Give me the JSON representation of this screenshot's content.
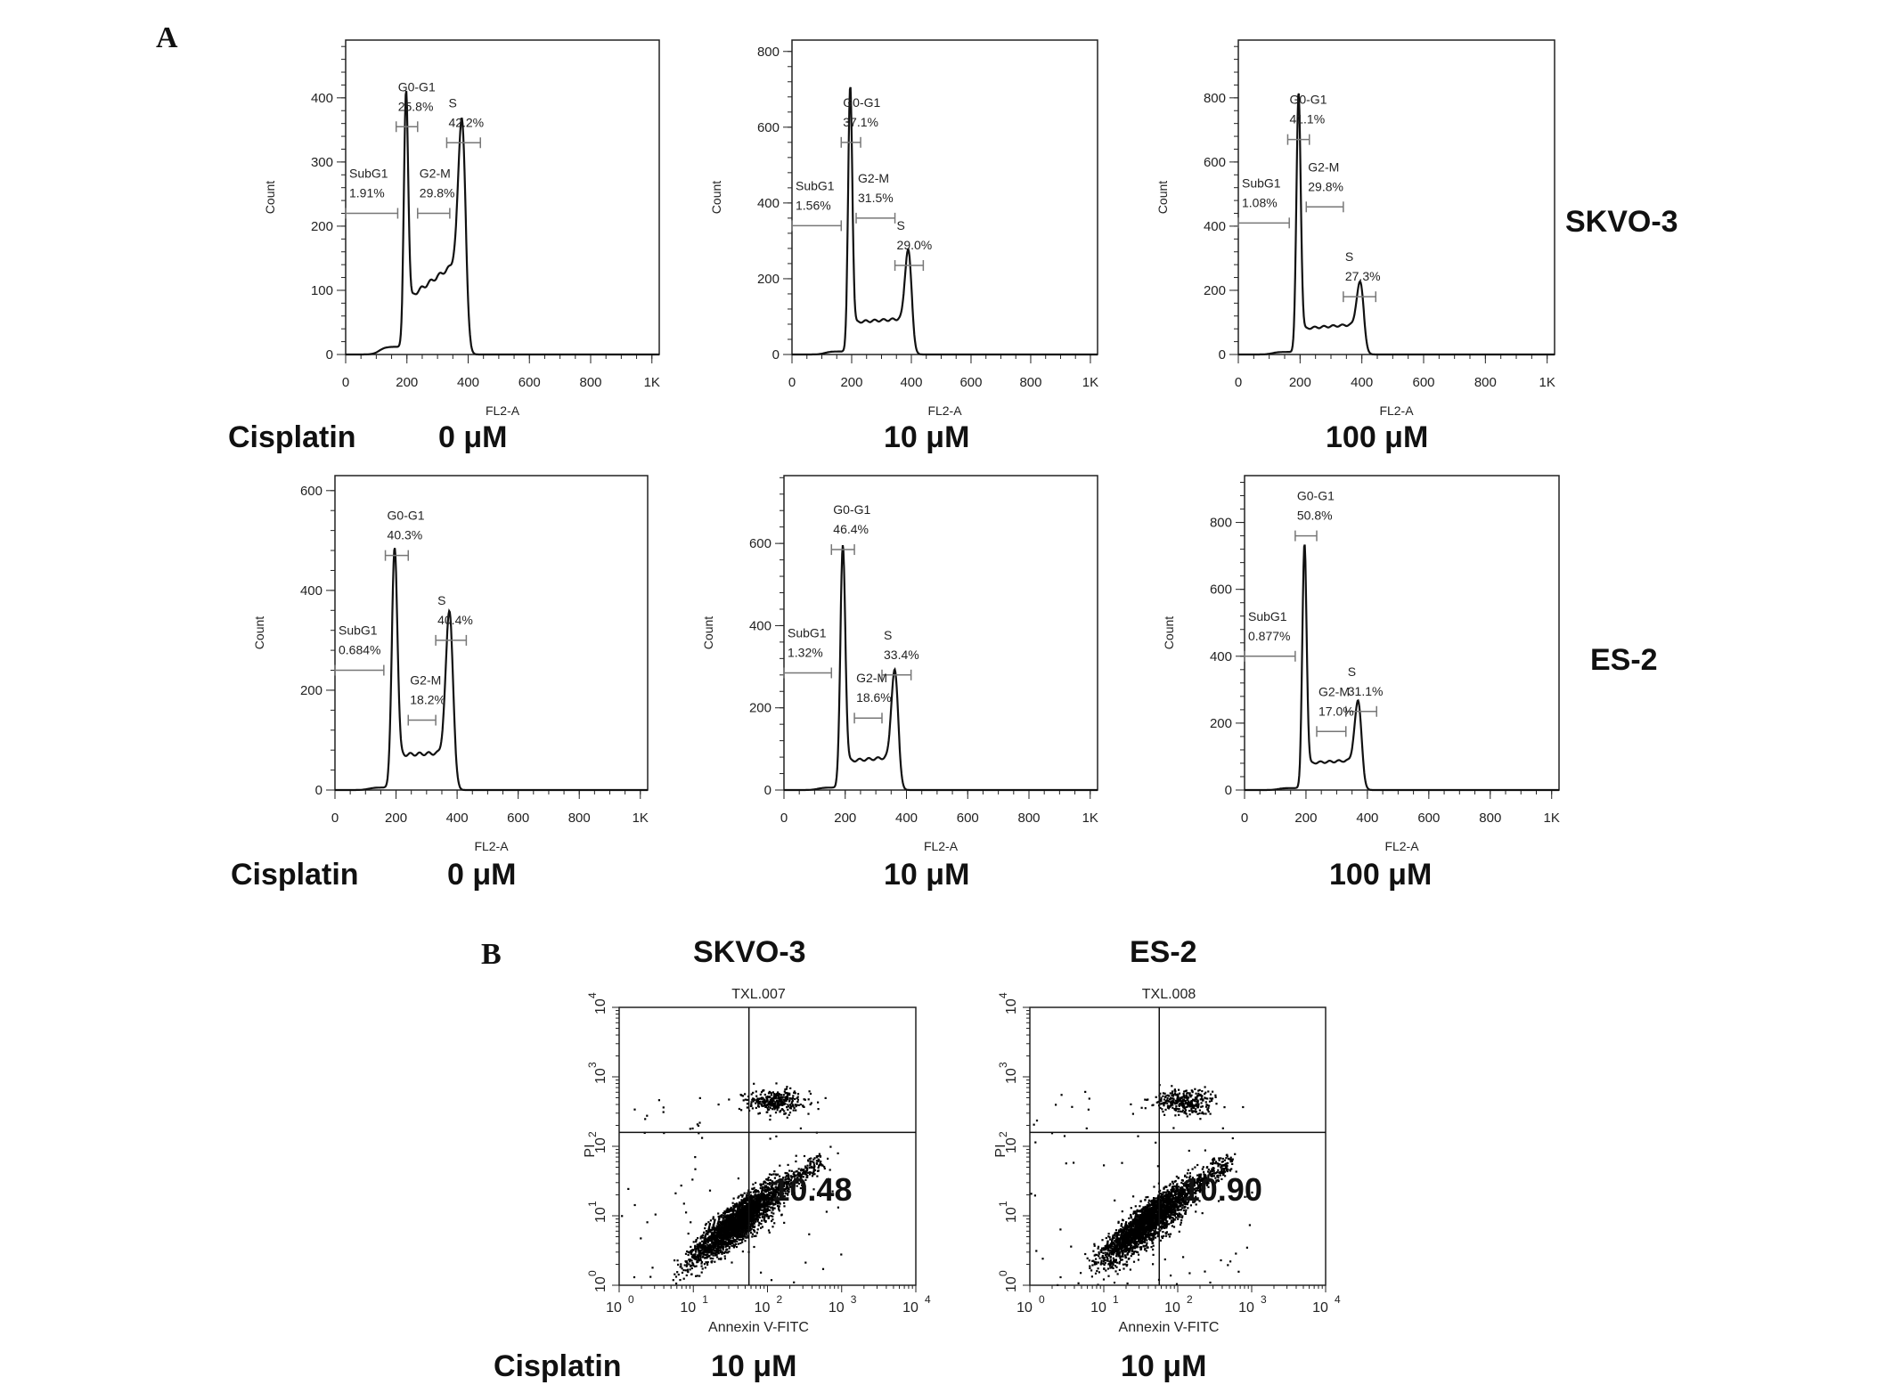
{
  "panel_letters": {
    "a": "A",
    "b": "B"
  },
  "row_labels": {
    "row1": "SKVO-3",
    "row2": "ES-2"
  },
  "dose_labels": {
    "drug": "Cisplatin",
    "d0": "0 μM",
    "d10": "10 μM",
    "d100": "100 μM"
  },
  "b_titles": {
    "left": "SKVO-3",
    "right": "ES-2"
  },
  "b_labels": {
    "drug": "Cisplatin",
    "left_dose": "10 μM",
    "right_dose": "10 μM"
  },
  "chart_data": [
    {
      "type": "line",
      "cell_line": "SKVO-3",
      "dose": "0 μM",
      "xlabel": "FL2-A",
      "ylabel": "Count",
      "xlim": [
        0,
        1024
      ],
      "ylim": [
        0,
        490
      ],
      "xticks": [
        "0",
        "200",
        "400",
        "600",
        "800",
        "1K"
      ],
      "yticks": [
        0,
        100,
        200,
        300,
        400
      ],
      "model": {
        "g1": {
          "mu": 197,
          "h": 390,
          "sd": 7
        },
        "g2": {
          "mu": 380,
          "h": 230,
          "sd": 12
        },
        "s": [
          85,
          150
        ],
        "sub": 12
      },
      "gates": [
        {
          "name": "SubG1",
          "pct": "1.91%",
          "range": [
            0,
            170
          ],
          "y": 220
        },
        {
          "name": "G0-G1",
          "pct": "25.8%",
          "range": [
            165,
            235
          ],
          "y": 355
        },
        {
          "name": "G2-M",
          "pct": "29.8%",
          "range": [
            235,
            340
          ],
          "y": 220
        },
        {
          "name": "S",
          "pct": "42.2%",
          "range": [
            330,
            440
          ],
          "y": 330
        }
      ]
    },
    {
      "type": "line",
      "cell_line": "SKVO-3",
      "dose": "10 μM",
      "xlabel": "FL2-A",
      "ylabel": "Count",
      "xlim": [
        0,
        1024
      ],
      "ylim": [
        0,
        830
      ],
      "xticks": [
        "0",
        "200",
        "400",
        "600",
        "800",
        "1K"
      ],
      "yticks": [
        0,
        200,
        400,
        600,
        800
      ],
      "model": {
        "g1": {
          "mu": 195,
          "h": 690,
          "sd": 7
        },
        "g2": {
          "mu": 390,
          "h": 190,
          "sd": 11
        },
        "s": [
          85,
          95
        ],
        "sub": 8
      },
      "gates": [
        {
          "name": "SubG1",
          "pct": "1.56%",
          "range": [
            0,
            165
          ],
          "y": 340
        },
        {
          "name": "G0-G1",
          "pct": "37.1%",
          "range": [
            165,
            230
          ],
          "y": 560
        },
        {
          "name": "G2-M",
          "pct": "31.5%",
          "range": [
            215,
            345
          ],
          "y": 360
        },
        {
          "name": "S",
          "pct": "29.0%",
          "range": [
            345,
            440
          ],
          "y": 235
        }
      ]
    },
    {
      "type": "line",
      "cell_line": "SKVO-3",
      "dose": "100 μM",
      "xlabel": "FL2-A",
      "ylabel": "Count",
      "xlim": [
        0,
        1024
      ],
      "ylim": [
        0,
        980
      ],
      "xticks": [
        "0",
        "200",
        "400",
        "600",
        "800",
        "1K"
      ],
      "yticks": [
        0,
        200,
        400,
        600,
        800
      ],
      "model": {
        "g1": {
          "mu": 195,
          "h": 800,
          "sd": 7
        },
        "g2": {
          "mu": 395,
          "h": 140,
          "sd": 11
        },
        "s": [
          80,
          95
        ],
        "sub": 8
      },
      "gates": [
        {
          "name": "SubG1",
          "pct": "1.08%",
          "range": [
            0,
            165
          ],
          "y": 410
        },
        {
          "name": "G0-G1",
          "pct": "41.1%",
          "range": [
            160,
            230
          ],
          "y": 670
        },
        {
          "name": "G2-M",
          "pct": "29.8%",
          "range": [
            220,
            340
          ],
          "y": 460
        },
        {
          "name": "S",
          "pct": "27.3%",
          "range": [
            340,
            445
          ],
          "y": 180
        }
      ]
    },
    {
      "type": "line",
      "cell_line": "ES-2",
      "dose": "0 μM",
      "xlabel": "FL2-A",
      "ylabel": "Count",
      "xlim": [
        0,
        1024
      ],
      "ylim": [
        0,
        630
      ],
      "xticks": [
        "0",
        "200",
        "400",
        "600",
        "800",
        "1K"
      ],
      "yticks": [
        0,
        200,
        400,
        600
      ],
      "model": {
        "g1": {
          "mu": 195,
          "h": 470,
          "sd": 9
        },
        "g2": {
          "mu": 375,
          "h": 290,
          "sd": 12
        },
        "s": [
          70,
          75
        ],
        "sub": 5
      },
      "gates": [
        {
          "name": "SubG1",
          "pct": "0.684%",
          "range": [
            0,
            160
          ],
          "y": 240
        },
        {
          "name": "G0-G1",
          "pct": "40.3%",
          "range": [
            165,
            240
          ],
          "y": 470
        },
        {
          "name": "G2-M",
          "pct": "18.2%",
          "range": [
            240,
            330
          ],
          "y": 140
        },
        {
          "name": "S",
          "pct": "40.4%",
          "range": [
            330,
            430
          ],
          "y": 300
        }
      ]
    },
    {
      "type": "line",
      "cell_line": "ES-2",
      "dose": "10 μM",
      "xlabel": "FL2-A",
      "ylabel": "Count",
      "xlim": [
        0,
        1024
      ],
      "ylim": [
        0,
        765
      ],
      "xticks": [
        "0",
        "200",
        "400",
        "600",
        "800",
        "1K"
      ],
      "yticks": [
        0,
        200,
        400,
        600
      ],
      "model": {
        "g1": {
          "mu": 192,
          "h": 580,
          "sd": 8
        },
        "g2": {
          "mu": 362,
          "h": 220,
          "sd": 11
        },
        "s": [
          70,
          80
        ],
        "sub": 6
      },
      "gates": [
        {
          "name": "SubG1",
          "pct": "1.32%",
          "range": [
            0,
            155
          ],
          "y": 285
        },
        {
          "name": "G0-G1",
          "pct": "46.4%",
          "range": [
            155,
            230
          ],
          "y": 585
        },
        {
          "name": "G2-M",
          "pct": "18.6%",
          "range": [
            230,
            320
          ],
          "y": 175
        },
        {
          "name": "S",
          "pct": "33.4%",
          "range": [
            320,
            415
          ],
          "y": 280
        }
      ]
    },
    {
      "type": "line",
      "cell_line": "ES-2",
      "dose": "100 μM",
      "xlabel": "FL2-A",
      "ylabel": "Count",
      "xlim": [
        0,
        1024
      ],
      "ylim": [
        0,
        940
      ],
      "xticks": [
        "0",
        "200",
        "400",
        "600",
        "800",
        "1K"
      ],
      "yticks": [
        0,
        200,
        400,
        600,
        800
      ],
      "model": {
        "g1": {
          "mu": 195,
          "h": 720,
          "sd": 7
        },
        "g2": {
          "mu": 370,
          "h": 185,
          "sd": 11
        },
        "s": [
          80,
          90
        ],
        "sub": 6
      },
      "gates": [
        {
          "name": "SubG1",
          "pct": "0.877%",
          "range": [
            0,
            165
          ],
          "y": 400
        },
        {
          "name": "G0-G1",
          "pct": "50.8%",
          "range": [
            165,
            235
          ],
          "y": 760
        },
        {
          "name": "G2-M",
          "pct": "17.0%",
          "range": [
            235,
            330
          ],
          "y": 175
        },
        {
          "name": "S",
          "pct": "31.1%",
          "range": [
            330,
            430
          ],
          "y": 235
        }
      ]
    },
    {
      "type": "scatter",
      "title": "TXL.007",
      "xlabel": "Annexin V-FITC",
      "ylabel": "PI",
      "xlim_log10": [
        0,
        4
      ],
      "ylim_log10": [
        0,
        4
      ],
      "xticks": [
        "0",
        "1",
        "2",
        "3",
        "4"
      ],
      "yticks": [
        "0",
        "1",
        "2",
        "3",
        "4"
      ],
      "quadrant_split_log10": [
        1.75,
        2.2
      ],
      "quadrant_value": "10.48",
      "seed": 7
    },
    {
      "type": "scatter",
      "title": "TXL.008",
      "xlabel": "Annexin V-FITC",
      "ylabel": "PI",
      "xlim_log10": [
        0,
        4
      ],
      "ylim_log10": [
        0,
        4
      ],
      "xticks": [
        "0",
        "1",
        "2",
        "3",
        "4"
      ],
      "yticks": [
        "0",
        "1",
        "2",
        "3",
        "4"
      ],
      "quadrant_split_log10": [
        1.75,
        2.2
      ],
      "quadrant_value": "10.90",
      "seed": 13
    }
  ]
}
